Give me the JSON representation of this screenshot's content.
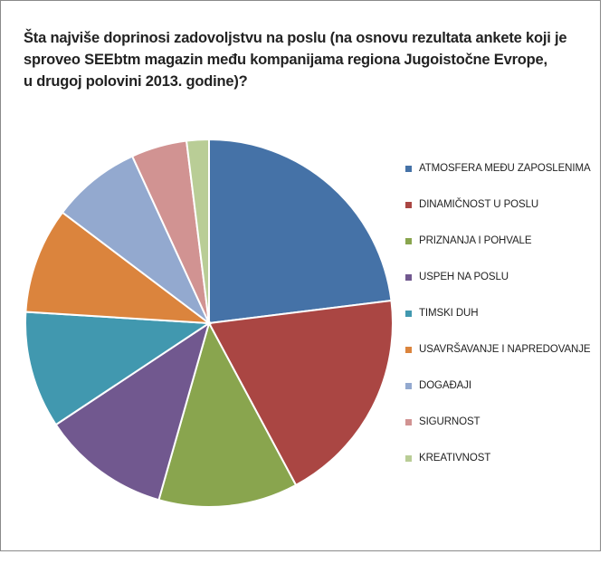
{
  "chart_data": {
    "type": "pie",
    "title": "Šta najviše doprinosi zadovoljstvu na poslu (na osnovu rezultata ankete koji je sproveo SEEbtm magazin među kompanijama regiona Jugoistočne Evrope, u drugoj polovini 2013. godine)?",
    "title_lines": [
      "Šta najviše doprinosi zadovoljstvu na poslu (na osnovu rezultata ankete koji je",
      "sproveo SEEbtm magazin među kompanijama regiona Jugoistočne Evrope,",
      "u drugoj polovini 2013. godine)?"
    ],
    "legend_position": "right",
    "slices": [
      {
        "label": "ATMOSFERA MEĐU ZAPOSLENIMA",
        "value": 23.5,
        "color": "#4572A7"
      },
      {
        "label": "DINAMIČNOST U POSLU",
        "value": 19.5,
        "color": "#AA4643"
      },
      {
        "label": "PRIZNANJA I POHVALE",
        "value": 12.5,
        "color": "#89A54E"
      },
      {
        "label": "USPEH NA POSLU",
        "value": 11.5,
        "color": "#71588F"
      },
      {
        "label": "TIMSKI DUH",
        "value": 10.5,
        "color": "#4198AF"
      },
      {
        "label": "USAVRŠAVANJE I NAPREDOVANJE",
        "value": 9.5,
        "color": "#DB843D"
      },
      {
        "label": "DOGAĐAJI",
        "value": 8.0,
        "color": "#93A9CF"
      },
      {
        "label": "SIGURNOST",
        "value": 5.0,
        "color": "#D19392"
      },
      {
        "label": "KREATIVNOST",
        "value": 2.0,
        "color": "#B9CD96"
      }
    ]
  }
}
